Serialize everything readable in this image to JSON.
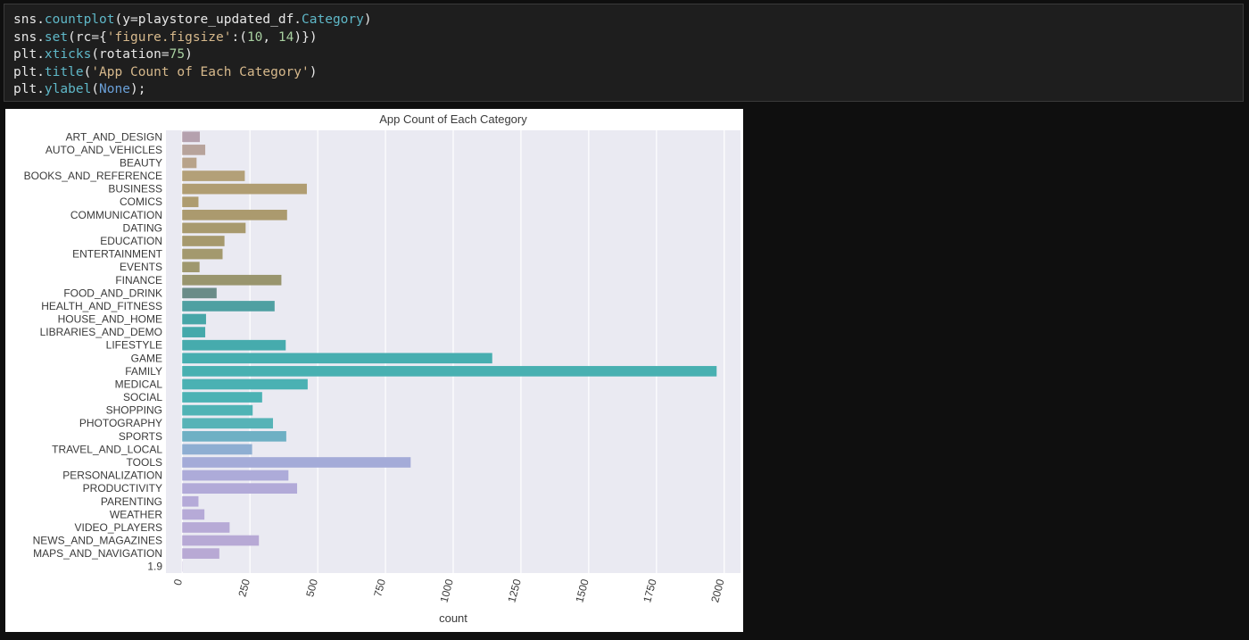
{
  "code": {
    "lines": [
      [
        {
          "t": "sns.",
          "c": ""
        },
        {
          "t": "countplot",
          "c": "fn"
        },
        {
          "t": "(y",
          "c": ""
        },
        {
          "t": "=",
          "c": "op"
        },
        {
          "t": "playstore_updated_df.",
          "c": ""
        },
        {
          "t": "Category",
          "c": "fn"
        },
        {
          "t": ")",
          "c": ""
        }
      ],
      [
        {
          "t": "sns.",
          "c": ""
        },
        {
          "t": "set",
          "c": "fn"
        },
        {
          "t": "(rc",
          "c": ""
        },
        {
          "t": "=",
          "c": "op"
        },
        {
          "t": "{",
          "c": ""
        },
        {
          "t": "'figure.figsize'",
          "c": "str"
        },
        {
          "t": ":(",
          "c": ""
        },
        {
          "t": "10",
          "c": "num"
        },
        {
          "t": ", ",
          "c": ""
        },
        {
          "t": "14",
          "c": "num"
        },
        {
          "t": ")})",
          "c": ""
        }
      ],
      [
        {
          "t": "plt.",
          "c": ""
        },
        {
          "t": "xticks",
          "c": "fn"
        },
        {
          "t": "(rotation",
          "c": ""
        },
        {
          "t": "=",
          "c": "op"
        },
        {
          "t": "75",
          "c": "num"
        },
        {
          "t": ")",
          "c": ""
        }
      ],
      [
        {
          "t": "plt.",
          "c": ""
        },
        {
          "t": "title",
          "c": "fn"
        },
        {
          "t": "(",
          "c": ""
        },
        {
          "t": "'App Count of Each Category'",
          "c": "str"
        },
        {
          "t": ")",
          "c": ""
        }
      ],
      [
        {
          "t": "plt.",
          "c": ""
        },
        {
          "t": "ylabel",
          "c": "fn"
        },
        {
          "t": "(",
          "c": ""
        },
        {
          "t": "None",
          "c": "kw"
        },
        {
          "t": ");",
          "c": ""
        }
      ]
    ]
  },
  "chart_data": {
    "type": "bar",
    "orientation": "horizontal",
    "title": "App Count of Each Category",
    "xlabel": "count",
    "ylabel": "",
    "xlim": [
      -60,
      2060
    ],
    "xticks": [
      0,
      250,
      500,
      750,
      1000,
      1250,
      1500,
      1750,
      2000
    ],
    "xtick_rotation": 75,
    "grid": true,
    "background": "#eaeaf2",
    "categories": [
      "ART_AND_DESIGN",
      "AUTO_AND_VEHICLES",
      "BEAUTY",
      "BOOKS_AND_REFERENCE",
      "BUSINESS",
      "COMICS",
      "COMMUNICATION",
      "DATING",
      "EDUCATION",
      "ENTERTAINMENT",
      "EVENTS",
      "FINANCE",
      "FOOD_AND_DRINK",
      "HEALTH_AND_FITNESS",
      "HOUSE_AND_HOME",
      "LIBRARIES_AND_DEMO",
      "LIFESTYLE",
      "GAME",
      "FAMILY",
      "MEDICAL",
      "SOCIAL",
      "SHOPPING",
      "PHOTOGRAPHY",
      "SPORTS",
      "TRAVEL_AND_LOCAL",
      "TOOLS",
      "PERSONALIZATION",
      "PRODUCTIVITY",
      "PARENTING",
      "WEATHER",
      "VIDEO_PLAYERS",
      "NEWS_AND_MAGAZINES",
      "MAPS_AND_NAVIGATION",
      "1.9"
    ],
    "values": [
      65,
      85,
      53,
      231,
      460,
      60,
      387,
      234,
      156,
      149,
      64,
      366,
      127,
      341,
      88,
      85,
      382,
      1144,
      1972,
      463,
      295,
      260,
      335,
      384,
      258,
      843,
      392,
      424,
      60,
      82,
      175,
      283,
      137,
      1
    ],
    "colors": [
      "#b5a1ae",
      "#b7a39b",
      "#b8a38a",
      "#b3a078",
      "#b09d72",
      "#ae9c6f",
      "#ab9a6e",
      "#a89a6e",
      "#a6996d",
      "#a3996e",
      "#9f986e",
      "#99956e",
      "#6a8c88",
      "#4fa0a2",
      "#47a6a8",
      "#45a9ab",
      "#46abad",
      "#47aeb0",
      "#48b0b1",
      "#4ab1b3",
      "#4cb2b4",
      "#50b3b5",
      "#57b3b7",
      "#6eb0c4",
      "#8eaed2",
      "#a4abd8",
      "#adabd9",
      "#b2aad8",
      "#b5aad8",
      "#b6aad7",
      "#b7aad6",
      "#b7a9d5",
      "#b8a9d4",
      "#b8a9d4"
    ]
  }
}
